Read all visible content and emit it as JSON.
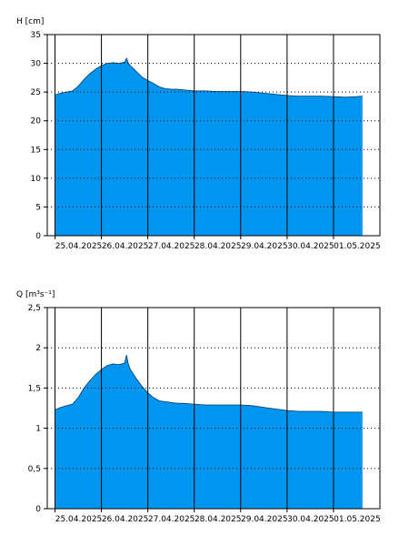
{
  "colors": {
    "fill": "#0096f0",
    "frame": "#000000",
    "grid": "#000000",
    "background": "#ffffff"
  },
  "chart_data": [
    {
      "type": "area",
      "ylabel": "H [cm]",
      "ylim": [
        0,
        35
      ],
      "yticks": [
        0,
        5,
        10,
        15,
        20,
        25,
        30,
        35
      ],
      "ytick_labels": [
        "0",
        "5",
        "10",
        "15",
        "20",
        "25",
        "30",
        "35"
      ],
      "xlim": [
        "24.04.2025 20:00",
        "02.05.2025 00:00"
      ],
      "xtick_labels": [
        "25.04.2025",
        "26.04.2025",
        "27.04.2025",
        "28.04.2025",
        "29.04.2025",
        "30.04.2025",
        "01.05.2025"
      ],
      "grid": true,
      "x": [
        "25.04.2025 00:00",
        "25.04.2025 03:00",
        "25.04.2025 06:00",
        "25.04.2025 09:00",
        "25.04.2025 12:00",
        "25.04.2025 15:00",
        "25.04.2025 18:00",
        "25.04.2025 21:00",
        "26.04.2025 00:00",
        "26.04.2025 03:00",
        "26.04.2025 06:00",
        "26.04.2025 09:00",
        "26.04.2025 12:00",
        "26.04.2025 13:00",
        "26.04.2025 14:00",
        "26.04.2025 15:00",
        "26.04.2025 18:00",
        "26.04.2025 21:00",
        "27.04.2025 00:00",
        "27.04.2025 03:00",
        "27.04.2025 06:00",
        "27.04.2025 09:00",
        "27.04.2025 12:00",
        "27.04.2025 15:00",
        "27.04.2025 18:00",
        "28.04.2025 00:00",
        "28.04.2025 06:00",
        "28.04.2025 12:00",
        "28.04.2025 18:00",
        "29.04.2025 00:00",
        "29.04.2025 06:00",
        "29.04.2025 12:00",
        "29.04.2025 18:00",
        "30.04.2025 00:00",
        "30.04.2025 06:00",
        "30.04.2025 12:00",
        "30.04.2025 18:00",
        "01.05.2025 00:00",
        "01.05.2025 06:00",
        "01.05.2025 12:00",
        "01.05.2025 15:00"
      ],
      "values": [
        24.5,
        24.8,
        25.0,
        25.2,
        26.0,
        27.2,
        28.2,
        29.0,
        29.6,
        30.0,
        30.1,
        30.0,
        30.2,
        30.9,
        30.0,
        29.6,
        28.6,
        27.6,
        27.0,
        26.5,
        25.9,
        25.6,
        25.5,
        25.5,
        25.4,
        25.2,
        25.2,
        25.1,
        25.1,
        25.1,
        25.0,
        24.8,
        24.6,
        24.4,
        24.3,
        24.3,
        24.3,
        24.2,
        24.1,
        24.2,
        24.3
      ]
    },
    {
      "type": "area",
      "ylabel": "Q [m³s⁻¹]",
      "ylim": [
        0,
        2.5
      ],
      "yticks": [
        0,
        0.5,
        1,
        1.5,
        2,
        2.5
      ],
      "ytick_labels": [
        "0",
        "0,5",
        "1",
        "1,5",
        "2",
        "2,5"
      ],
      "xlim": [
        "24.04.2025 20:00",
        "02.05.2025 00:00"
      ],
      "xtick_labels": [
        "25.04.2025",
        "26.04.2025",
        "27.04.2025",
        "28.04.2025",
        "29.04.2025",
        "30.04.2025",
        "01.05.2025"
      ],
      "grid": true,
      "x": [
        "25.04.2025 00:00",
        "25.04.2025 03:00",
        "25.04.2025 06:00",
        "25.04.2025 09:00",
        "25.04.2025 12:00",
        "25.04.2025 15:00",
        "25.04.2025 18:00",
        "25.04.2025 21:00",
        "26.04.2025 00:00",
        "26.04.2025 03:00",
        "26.04.2025 06:00",
        "26.04.2025 09:00",
        "26.04.2025 12:00",
        "26.04.2025 13:00",
        "26.04.2025 14:00",
        "26.04.2025 15:00",
        "26.04.2025 18:00",
        "26.04.2025 21:00",
        "27.04.2025 00:00",
        "27.04.2025 03:00",
        "27.04.2025 06:00",
        "27.04.2025 09:00",
        "27.04.2025 12:00",
        "27.04.2025 15:00",
        "27.04.2025 18:00",
        "28.04.2025 00:00",
        "28.04.2025 06:00",
        "28.04.2025 12:00",
        "28.04.2025 18:00",
        "29.04.2025 00:00",
        "29.04.2025 06:00",
        "29.04.2025 12:00",
        "29.04.2025 18:00",
        "30.04.2025 00:00",
        "30.04.2025 06:00",
        "30.04.2025 12:00",
        "30.04.2025 18:00",
        "01.05.2025 00:00",
        "01.05.2025 06:00",
        "01.05.2025 12:00",
        "01.05.2025 15:00"
      ],
      "values": [
        1.23,
        1.26,
        1.28,
        1.3,
        1.38,
        1.5,
        1.59,
        1.67,
        1.73,
        1.78,
        1.8,
        1.79,
        1.81,
        1.91,
        1.79,
        1.73,
        1.62,
        1.52,
        1.44,
        1.38,
        1.34,
        1.33,
        1.32,
        1.31,
        1.31,
        1.3,
        1.29,
        1.29,
        1.29,
        1.29,
        1.28,
        1.26,
        1.24,
        1.22,
        1.21,
        1.21,
        1.21,
        1.2,
        1.2,
        1.2,
        1.2
      ]
    }
  ]
}
